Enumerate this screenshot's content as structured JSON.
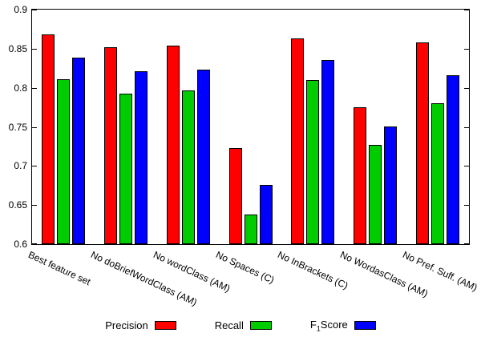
{
  "chart_data": {
    "type": "bar",
    "title": "",
    "xlabel": "",
    "ylabel": "",
    "ylim": [
      0.6,
      0.9
    ],
    "yticks": [
      0.6,
      0.65,
      0.7,
      0.75,
      0.8,
      0.85,
      0.9
    ],
    "grid": false,
    "legend_position": "bottom",
    "bar_border_color": "#000000",
    "categories": [
      "Best feature set",
      "No doBriefWordClass (AM)",
      "No wordClass (AM)",
      "No Spaces (C)",
      "No InBrackets (C)",
      "No WordasClass (AM)",
      "No Pref.  Suff. (AM)"
    ],
    "series": [
      {
        "name": "Precision",
        "color": "#ff0000",
        "values": [
          0.868,
          0.852,
          0.854,
          0.723,
          0.863,
          0.775,
          0.858
        ]
      },
      {
        "name": "Recall",
        "color": "#00cc00",
        "values": [
          0.811,
          0.793,
          0.797,
          0.638,
          0.81,
          0.727,
          0.78
        ]
      },
      {
        "name": "F1 Score",
        "name_base": "F",
        "name_sub": "1",
        "name_rest": "Score",
        "color": "#0000ff",
        "values": [
          0.839,
          0.821,
          0.823,
          0.676,
          0.836,
          0.751,
          0.816
        ]
      }
    ]
  }
}
